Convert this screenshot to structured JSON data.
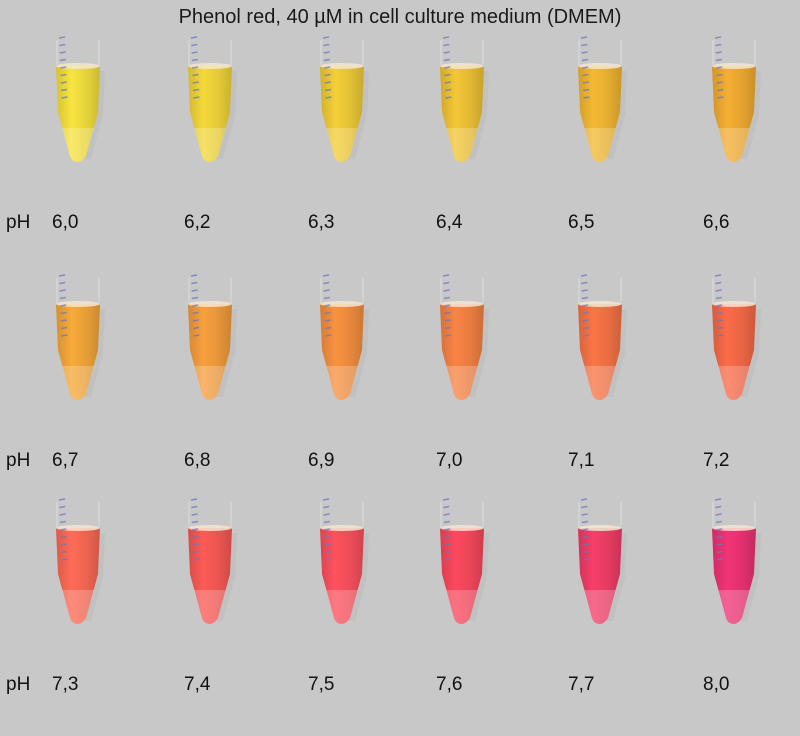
{
  "title": "Phenol red, 40 µM in cell culture medium (DMEM)",
  "ph_prefix": "pH",
  "rows": [
    {
      "tubes": [
        {
          "ph": "6,0",
          "color": "#e6d33a"
        },
        {
          "ph": "6,2",
          "color": "#e3c936"
        },
        {
          "ph": "6,3",
          "color": "#e2c034"
        },
        {
          "ph": "6,4",
          "color": "#e2b832"
        },
        {
          "ph": "6,5",
          "color": "#e3ac30"
        },
        {
          "ph": "6,6",
          "color": "#e3a22f"
        }
      ]
    },
    {
      "tubes": [
        {
          "ph": "6,7",
          "color": "#e69d36"
        },
        {
          "ph": "6,8",
          "color": "#e6943a"
        },
        {
          "ph": "6,9",
          "color": "#e7873c"
        },
        {
          "ph": "7,0",
          "color": "#e77b40"
        },
        {
          "ph": "7,1",
          "color": "#e86d42"
        },
        {
          "ph": "7,2",
          "color": "#e86444"
        }
      ]
    },
    {
      "tubes": [
        {
          "ph": "7,3",
          "color": "#ec6350"
        },
        {
          "ph": "7,4",
          "color": "#ea5450"
        },
        {
          "ph": "7,5",
          "color": "#ec4c58"
        },
        {
          "ph": "7,6",
          "color": "#ea4458"
        },
        {
          "ph": "7,7",
          "color": "#e43a62"
        },
        {
          "ph": "8,0",
          "color": "#e0306e"
        }
      ]
    }
  ]
}
